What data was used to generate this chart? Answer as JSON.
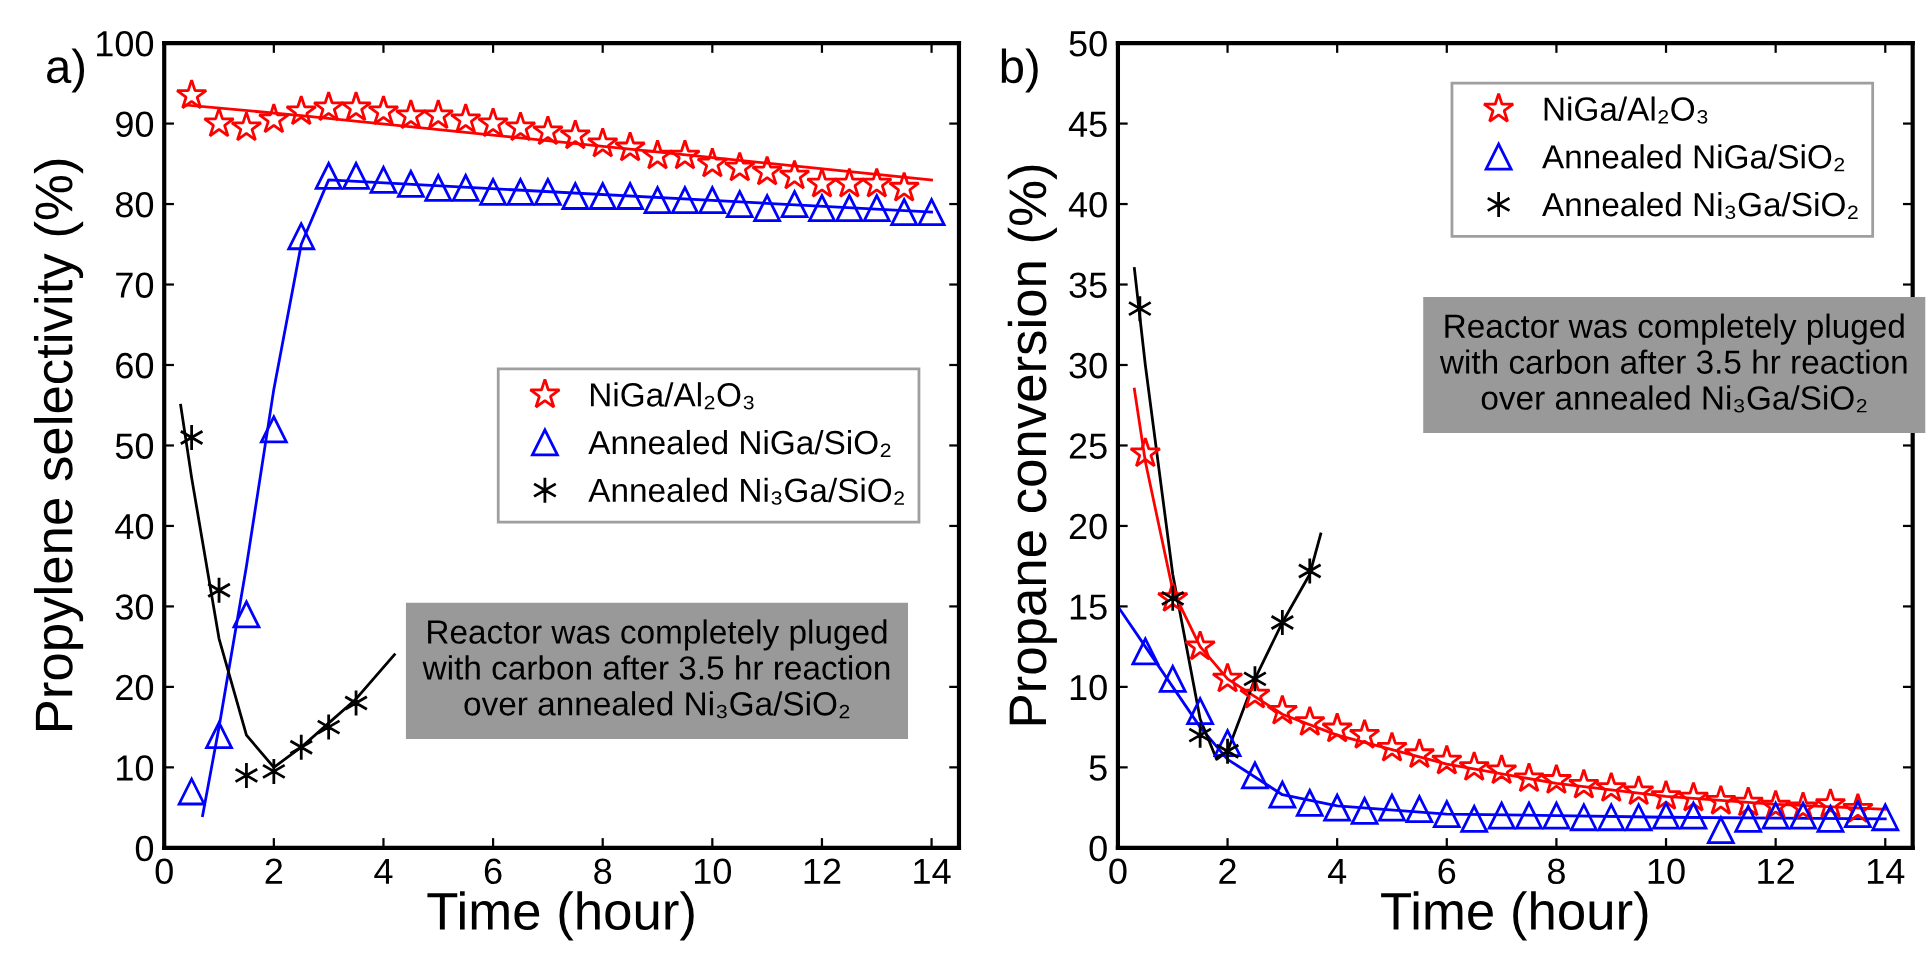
{
  "chart_data": [
    {
      "type": "scatter",
      "title": "a)",
      "xlabel": "Time (hour)",
      "ylabel": "Propylene selectivity (%)",
      "xlim": [
        0,
        14.5
      ],
      "ylim": [
        0,
        100
      ],
      "xticks": [
        0,
        2,
        4,
        6,
        8,
        10,
        12,
        14
      ],
      "yticks": [
        0,
        10,
        20,
        30,
        40,
        50,
        60,
        70,
        80,
        90,
        100
      ],
      "grid": false,
      "legend": "right",
      "annotations": [
        "Reactor was completely pluged\nwith carbon after 3.5 hr reaction\nover annealed Ni₃Ga/SiO₂"
      ],
      "series": [
        {
          "name": "NiGa/Al₂O₃",
          "color": "#ff0000",
          "marker": "star",
          "x": [
            0.5,
            1,
            1.5,
            2,
            2.5,
            3,
            3.5,
            4,
            4.5,
            5,
            5.5,
            6,
            6.5,
            7,
            7.5,
            8,
            8.5,
            9,
            9.5,
            10,
            10.5,
            11,
            11.5,
            12,
            12.5,
            13,
            13.5
          ],
          "values": [
            93.5,
            90,
            89.5,
            90.5,
            91.5,
            92,
            92,
            91.5,
            91,
            91,
            90.5,
            90,
            89.5,
            89,
            88.5,
            87.5,
            87,
            86,
            86,
            85,
            84.5,
            84,
            83.5,
            82.5,
            82.5,
            82.5,
            82
          ]
        },
        {
          "name": "Annealed NiGa/SiO₂",
          "color": "#0000ff",
          "marker": "triangle",
          "x": [
            0.5,
            1,
            1.5,
            2,
            2.5,
            3,
            3.5,
            4,
            4.5,
            5,
            5.5,
            6,
            6.5,
            7,
            7.5,
            8,
            8.5,
            9,
            9.5,
            10,
            10.5,
            11,
            11.5,
            12,
            12.5,
            13,
            13.5,
            14
          ],
          "values": [
            7,
            14,
            29,
            52,
            76,
            83.5,
            83.5,
            83,
            82.5,
            82,
            82,
            81.5,
            81.5,
            81.5,
            81,
            81,
            81,
            80.5,
            80.5,
            80.5,
            80,
            79.5,
            80,
            79.5,
            79.5,
            79.5,
            79,
            79
          ]
        },
        {
          "name": "Annealed Ni₃Ga/SiO₂",
          "color": "#000000",
          "marker": "cross",
          "x": [
            0.5,
            1,
            1.5,
            2,
            2.5,
            3,
            3.5
          ],
          "values": [
            51,
            32,
            9,
            9.5,
            12.5,
            15,
            18
          ]
        },
        {
          "type": "line",
          "color": "#ff0000",
          "x": [
            0.4,
            2.5,
            14
          ],
          "values": [
            92.3,
            91,
            83
          ]
        },
        {
          "type": "line",
          "color": "#0000ff",
          "x": [
            0.7,
            1,
            1.5,
            2,
            2.5,
            3,
            14
          ],
          "values": [
            4,
            15,
            35,
            57,
            75,
            83,
            79
          ]
        },
        {
          "type": "line",
          "color": "#000000",
          "x": [
            0.3,
            0.5,
            1,
            1.5,
            2,
            2.5,
            3,
            3.5,
            4.2
          ],
          "values": [
            55,
            46,
            26,
            14,
            10,
            12.5,
            15.5,
            18.5,
            24
          ]
        }
      ]
    },
    {
      "type": "scatter",
      "title": "b)",
      "xlabel": "Time (hour)",
      "ylabel": "Propane conversion (%)",
      "xlim": [
        0,
        14.5
      ],
      "ylim": [
        0,
        50
      ],
      "xticks": [
        0,
        2,
        4,
        6,
        8,
        10,
        12,
        14
      ],
      "yticks": [
        0,
        5,
        10,
        15,
        20,
        25,
        30,
        35,
        40,
        45,
        50
      ],
      "grid": false,
      "legend": "top right",
      "annotations": [
        "Reactor was completely pluged\nwith carbon after 3.5 hr reaction\nover annealed Ni₃Ga/SiO₂"
      ],
      "series": [
        {
          "name": "NiGa/Al₂O₃",
          "color": "#ff0000",
          "marker": "star",
          "x": [
            0.5,
            1,
            1.5,
            2,
            2.5,
            3,
            3.5,
            4,
            4.5,
            5,
            5.5,
            6,
            6.5,
            7,
            7.5,
            8,
            8.5,
            9,
            9.5,
            10,
            10.5,
            11,
            11.5,
            12,
            12.5,
            13,
            13.5
          ],
          "values": [
            24.5,
            15.5,
            12.5,
            10.5,
            9.5,
            8.5,
            7.8,
            7.4,
            7,
            6.2,
            5.8,
            5.4,
            5,
            4.8,
            4.3,
            4.2,
            3.9,
            3.7,
            3.5,
            3.2,
            3.1,
            2.9,
            2.8,
            2.6,
            2.5,
            2.7,
            2.4
          ]
        },
        {
          "name": "Annealed NiGa/SiO₂",
          "color": "#0000ff",
          "marker": "triangle",
          "x": [
            0.5,
            1,
            1.5,
            2,
            2.5,
            3,
            3.5,
            4,
            4.5,
            5,
            5.5,
            6,
            6.5,
            7,
            7.5,
            8,
            8.5,
            9,
            9.5,
            10,
            10.5,
            11,
            11.5,
            12,
            12.5,
            13,
            13.5,
            14
          ],
          "values": [
            12.2,
            10.5,
            8.5,
            6.5,
            4.5,
            3.3,
            2.8,
            2.5,
            2.3,
            2.5,
            2.4,
            2.1,
            1.8,
            2,
            2,
            2,
            1.9,
            1.9,
            1.9,
            2,
            2,
            1.1,
            1.8,
            2,
            2,
            1.8,
            2.1,
            1.9
          ]
        },
        {
          "name": "Annealed Ni₃Ga/SiO₂",
          "color": "#000000",
          "marker": "cross",
          "x": [
            0.4,
            1,
            1.5,
            2,
            2.5,
            3,
            3.5
          ],
          "values": [
            33.5,
            15.5,
            7,
            6,
            10.5,
            14,
            17.2
          ]
        },
        {
          "type": "line",
          "color": "#ff0000",
          "x": [
            0.3,
            0.5,
            1,
            1.5,
            2,
            3,
            4,
            6,
            8,
            10,
            12,
            14
          ],
          "values": [
            28.5,
            24,
            16,
            12.5,
            10.5,
            8.3,
            7,
            5.2,
            4,
            3.2,
            2.7,
            2.4
          ]
        },
        {
          "type": "line",
          "color": "#0000ff",
          "x": [
            0,
            0.5,
            1,
            1.5,
            2,
            3,
            4,
            6,
            8,
            10,
            14
          ],
          "values": [
            15,
            12.5,
            10,
            7.5,
            5.5,
            3.3,
            2.6,
            2.1,
            2,
            1.9,
            1.8
          ]
        },
        {
          "type": "line",
          "color": "#000000",
          "x": [
            0.3,
            0.5,
            1,
            1.5,
            1.8,
            2,
            2.5,
            3,
            3.5,
            3.7
          ],
          "values": [
            36,
            30,
            17,
            8,
            5.5,
            6,
            10.5,
            14,
            17,
            19.5
          ]
        }
      ]
    }
  ]
}
